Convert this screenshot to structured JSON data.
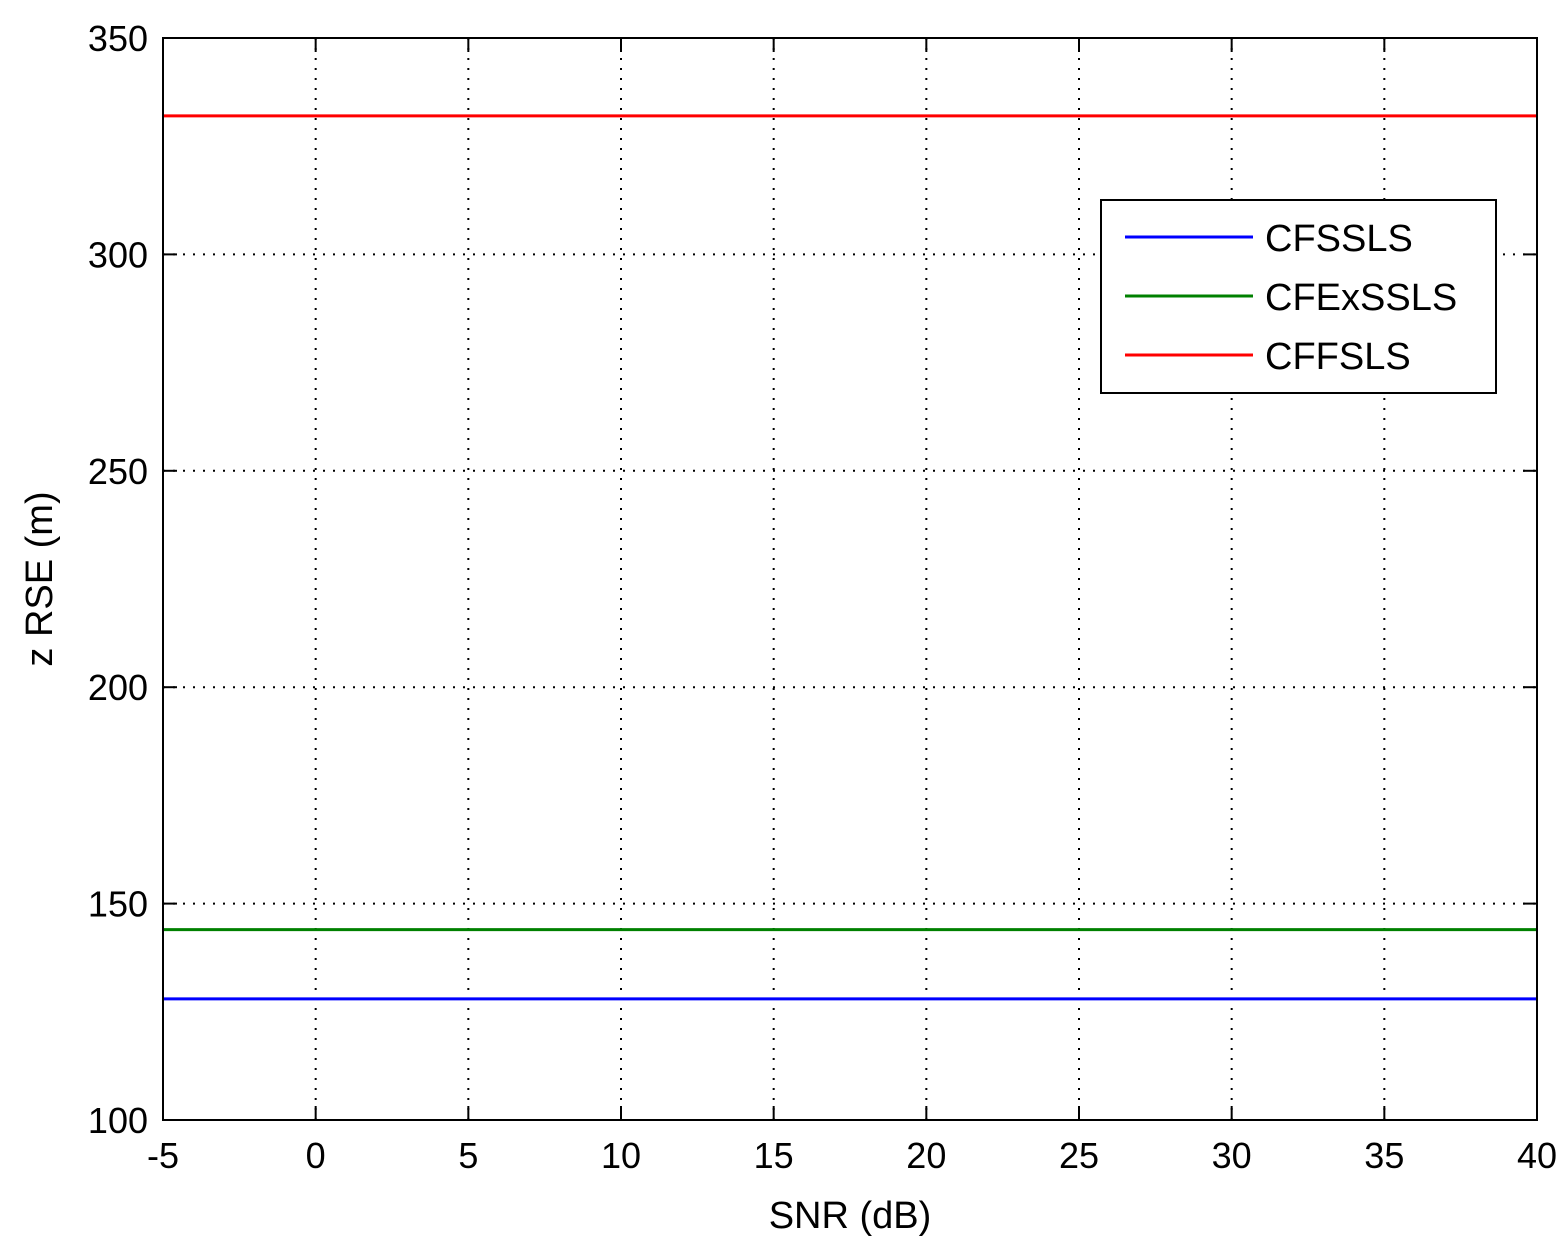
{
  "chart_data": {
    "type": "line",
    "title": "",
    "xlabel": "SNR (dB)",
    "ylabel": "z RSE (m)",
    "xlim": [
      -5,
      40
    ],
    "ylim": [
      100,
      350
    ],
    "xticks": [
      -5,
      0,
      5,
      10,
      15,
      20,
      25,
      30,
      35,
      40
    ],
    "yticks": [
      100,
      150,
      200,
      250,
      300,
      350
    ],
    "grid": true,
    "grid_style": "dotted",
    "legend_position": "top-right",
    "series": [
      {
        "name": "CFSSLS",
        "color": "#0000ff",
        "x": [
          -5,
          40
        ],
        "y": [
          128,
          128
        ]
      },
      {
        "name": "CFExSSLS",
        "color": "#008000",
        "x": [
          -5,
          40
        ],
        "y": [
          144,
          144
        ]
      },
      {
        "name": "CFFSLS",
        "color": "#ff0000",
        "x": [
          -5,
          40
        ],
        "y": [
          332,
          332
        ]
      }
    ]
  }
}
